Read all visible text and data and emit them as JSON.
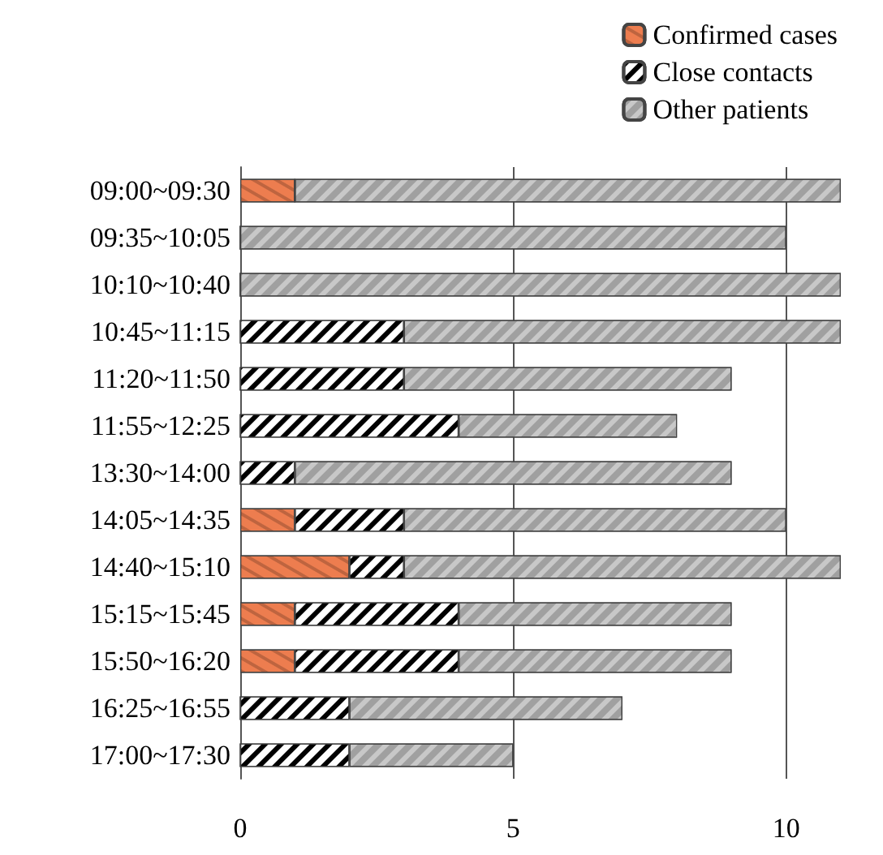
{
  "chart_data": {
    "type": "bar",
    "orientation": "horizontal",
    "stacked": true,
    "categories": [
      "09:00~09:30",
      "09:35~10:05",
      "10:10~10:40",
      "10:45~11:15",
      "11:20~11:50",
      "11:55~12:25",
      "13:30~14:00",
      "14:05~14:35",
      "14:40~15:10",
      "15:15~15:45",
      "15:50~16:20",
      "16:25~16:55",
      "17:00~17:30"
    ],
    "series": [
      {
        "name": "Confirmed cases",
        "color": "#ed7d4f",
        "values": [
          1,
          0,
          0,
          0,
          0,
          0,
          0,
          1,
          2,
          1,
          1,
          0,
          0
        ]
      },
      {
        "name": "Close contacts",
        "color": "#ffffff",
        "values": [
          0,
          0,
          0,
          3,
          3,
          4,
          1,
          2,
          1,
          3,
          3,
          2,
          2
        ]
      },
      {
        "name": "Other patients",
        "color": "#c8c8c8",
        "values": [
          10,
          10,
          11,
          8,
          6,
          4,
          8,
          7,
          8,
          5,
          5,
          5,
          3
        ]
      }
    ],
    "xlim": [
      0,
      11
    ],
    "xticks": [
      0,
      5,
      10
    ],
    "grid": "x",
    "legend": "top right"
  }
}
